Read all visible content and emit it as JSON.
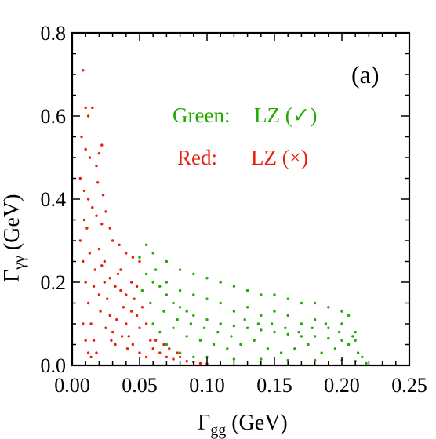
{
  "chart_data": {
    "type": "scatter",
    "panel_label": "(a)",
    "xlabel": {
      "main": "Γ",
      "sub": "gg",
      "unit": " (GeV)"
    },
    "ylabel": {
      "main": "Γ",
      "sub": "γγ",
      "unit": " (GeV)"
    },
    "xlim": [
      0.0,
      0.25
    ],
    "ylim": [
      0.0,
      0.8
    ],
    "x_ticks": [
      "0.00",
      "0.05",
      "0.10",
      "0.15",
      "0.20",
      "0.25"
    ],
    "y_ticks": [
      "0.0",
      "0.2",
      "0.4",
      "0.6",
      "0.8"
    ],
    "grid": false,
    "annotations": [
      {
        "label": "Green:",
        "text": "LZ (✓)",
        "color": "#22aa00"
      },
      {
        "label": "Red:",
        "text": "LZ (×)",
        "color": "#e8200a"
      }
    ],
    "series": [
      {
        "name": "Green: LZ (✓)",
        "color": "#22aa00",
        "points": [
          [
            0.05,
            0.26
          ],
          [
            0.055,
            0.22
          ],
          [
            0.06,
            0.2
          ],
          [
            0.065,
            0.19
          ],
          [
            0.07,
            0.17
          ],
          [
            0.075,
            0.15
          ],
          [
            0.08,
            0.14
          ],
          [
            0.085,
            0.13
          ],
          [
            0.09,
            0.12
          ],
          [
            0.1,
            0.11
          ],
          [
            0.11,
            0.1
          ],
          [
            0.12,
            0.095
          ],
          [
            0.13,
            0.09
          ],
          [
            0.14,
            0.085
          ],
          [
            0.15,
            0.08
          ],
          [
            0.16,
            0.075
          ],
          [
            0.17,
            0.07
          ],
          [
            0.18,
            0.07
          ],
          [
            0.19,
            0.065
          ],
          [
            0.2,
            0.06
          ],
          [
            0.21,
            0.06
          ],
          [
            0.205,
            0.12
          ],
          [
            0.2,
            0.13
          ],
          [
            0.19,
            0.14
          ],
          [
            0.18,
            0.15
          ],
          [
            0.17,
            0.15
          ],
          [
            0.16,
            0.16
          ],
          [
            0.15,
            0.17
          ],
          [
            0.14,
            0.17
          ],
          [
            0.13,
            0.18
          ],
          [
            0.12,
            0.19
          ],
          [
            0.11,
            0.2
          ],
          [
            0.1,
            0.21
          ],
          [
            0.09,
            0.22
          ],
          [
            0.08,
            0.23
          ],
          [
            0.07,
            0.25
          ],
          [
            0.06,
            0.27
          ],
          [
            0.055,
            0.29
          ],
          [
            0.06,
            0.1
          ],
          [
            0.07,
            0.05
          ],
          [
            0.08,
            0.03
          ],
          [
            0.09,
            0.02
          ],
          [
            0.1,
            0.02
          ],
          [
            0.12,
            0.015
          ],
          [
            0.14,
            0.015
          ],
          [
            0.16,
            0.012
          ],
          [
            0.18,
            0.012
          ],
          [
            0.2,
            0.012
          ],
          [
            0.21,
            0.01
          ],
          [
            0.215,
            0.02
          ],
          [
            0.065,
            0.08
          ],
          [
            0.075,
            0.09
          ],
          [
            0.085,
            0.07
          ],
          [
            0.095,
            0.06
          ],
          [
            0.105,
            0.05
          ],
          [
            0.115,
            0.04
          ],
          [
            0.125,
            0.05
          ],
          [
            0.135,
            0.06
          ],
          [
            0.145,
            0.04
          ],
          [
            0.155,
            0.03
          ],
          [
            0.165,
            0.04
          ],
          [
            0.175,
            0.05
          ],
          [
            0.185,
            0.03
          ],
          [
            0.195,
            0.04
          ],
          [
            0.205,
            0.05
          ],
          [
            0.21,
            0.08
          ],
          [
            0.2,
            0.1
          ],
          [
            0.19,
            0.09
          ],
          [
            0.18,
            0.11
          ],
          [
            0.17,
            0.1
          ],
          [
            0.16,
            0.12
          ],
          [
            0.15,
            0.13
          ],
          [
            0.14,
            0.12
          ],
          [
            0.13,
            0.14
          ],
          [
            0.12,
            0.13
          ],
          [
            0.11,
            0.15
          ],
          [
            0.1,
            0.16
          ],
          [
            0.09,
            0.17
          ],
          [
            0.08,
            0.18
          ],
          [
            0.07,
            0.2
          ],
          [
            0.062,
            0.23
          ],
          [
            0.058,
            0.15
          ],
          [
            0.068,
            0.13
          ],
          [
            0.078,
            0.11
          ],
          [
            0.088,
            0.1
          ],
          [
            0.098,
            0.09
          ],
          [
            0.108,
            0.08
          ],
          [
            0.118,
            0.07
          ],
          [
            0.128,
            0.11
          ],
          [
            0.138,
            0.1
          ],
          [
            0.148,
            0.1
          ],
          [
            0.158,
            0.09
          ],
          [
            0.168,
            0.08
          ],
          [
            0.178,
            0.09
          ],
          [
            0.188,
            0.1
          ],
          [
            0.198,
            0.08
          ],
          [
            0.208,
            0.07
          ],
          [
            0.212,
            0.03
          ],
          [
            0.218,
            0.005
          ],
          [
            0.052,
            0.18
          ]
        ]
      },
      {
        "name": "Red: LZ (×)",
        "color": "#e8200a",
        "points": [
          [
            0.008,
            0.71
          ],
          [
            0.01,
            0.62
          ],
          [
            0.012,
            0.6
          ],
          [
            0.015,
            0.62
          ],
          [
            0.007,
            0.55
          ],
          [
            0.01,
            0.52
          ],
          [
            0.013,
            0.5
          ],
          [
            0.018,
            0.48
          ],
          [
            0.02,
            0.51
          ],
          [
            0.022,
            0.53
          ],
          [
            0.006,
            0.45
          ],
          [
            0.009,
            0.42
          ],
          [
            0.012,
            0.4
          ],
          [
            0.015,
            0.38
          ],
          [
            0.018,
            0.36
          ],
          [
            0.022,
            0.34
          ],
          [
            0.025,
            0.37
          ],
          [
            0.028,
            0.33
          ],
          [
            0.03,
            0.3
          ],
          [
            0.035,
            0.29
          ],
          [
            0.04,
            0.27
          ],
          [
            0.045,
            0.26
          ],
          [
            0.05,
            0.25
          ],
          [
            0.006,
            0.3
          ],
          [
            0.008,
            0.25
          ],
          [
            0.01,
            0.2
          ],
          [
            0.012,
            0.15
          ],
          [
            0.014,
            0.1
          ],
          [
            0.016,
            0.06
          ],
          [
            0.018,
            0.03
          ],
          [
            0.02,
            0.28
          ],
          [
            0.022,
            0.24
          ],
          [
            0.024,
            0.2
          ],
          [
            0.026,
            0.16
          ],
          [
            0.028,
            0.12
          ],
          [
            0.03,
            0.08
          ],
          [
            0.032,
            0.05
          ],
          [
            0.034,
            0.22
          ],
          [
            0.036,
            0.18
          ],
          [
            0.038,
            0.14
          ],
          [
            0.04,
            0.1
          ],
          [
            0.042,
            0.07
          ],
          [
            0.044,
            0.2
          ],
          [
            0.046,
            0.16
          ],
          [
            0.048,
            0.12
          ],
          [
            0.05,
            0.09
          ],
          [
            0.052,
            0.14
          ],
          [
            0.055,
            0.1
          ],
          [
            0.058,
            0.06
          ],
          [
            0.06,
            0.04
          ],
          [
            0.065,
            0.03
          ],
          [
            0.07,
            0.02
          ],
          [
            0.075,
            0.015
          ],
          [
            0.08,
            0.02
          ],
          [
            0.085,
            0.01
          ],
          [
            0.09,
            0.008
          ],
          [
            0.095,
            0.005
          ],
          [
            0.1,
            0.004
          ],
          [
            0.008,
            0.1
          ],
          [
            0.01,
            0.06
          ],
          [
            0.012,
            0.03
          ],
          [
            0.014,
            0.02
          ],
          [
            0.016,
            0.19
          ],
          [
            0.02,
            0.17
          ],
          [
            0.024,
            0.25
          ],
          [
            0.028,
            0.21
          ],
          [
            0.032,
            0.19
          ],
          [
            0.036,
            0.23
          ],
          [
            0.04,
            0.17
          ],
          [
            0.044,
            0.13
          ],
          [
            0.048,
            0.19
          ],
          [
            0.009,
            0.35
          ],
          [
            0.011,
            0.33
          ],
          [
            0.013,
            0.27
          ],
          [
            0.017,
            0.23
          ],
          [
            0.021,
            0.13
          ],
          [
            0.025,
            0.09
          ],
          [
            0.029,
            0.06
          ],
          [
            0.033,
            0.11
          ],
          [
            0.037,
            0.07
          ],
          [
            0.041,
            0.04
          ],
          [
            0.045,
            0.05
          ],
          [
            0.05,
            0.03
          ],
          [
            0.055,
            0.02
          ],
          [
            0.062,
            0.06
          ],
          [
            0.068,
            0.05
          ],
          [
            0.072,
            0.04
          ],
          [
            0.078,
            0.03
          ],
          [
            0.019,
            0.44
          ],
          [
            0.023,
            0.41
          ]
        ]
      }
    ]
  }
}
